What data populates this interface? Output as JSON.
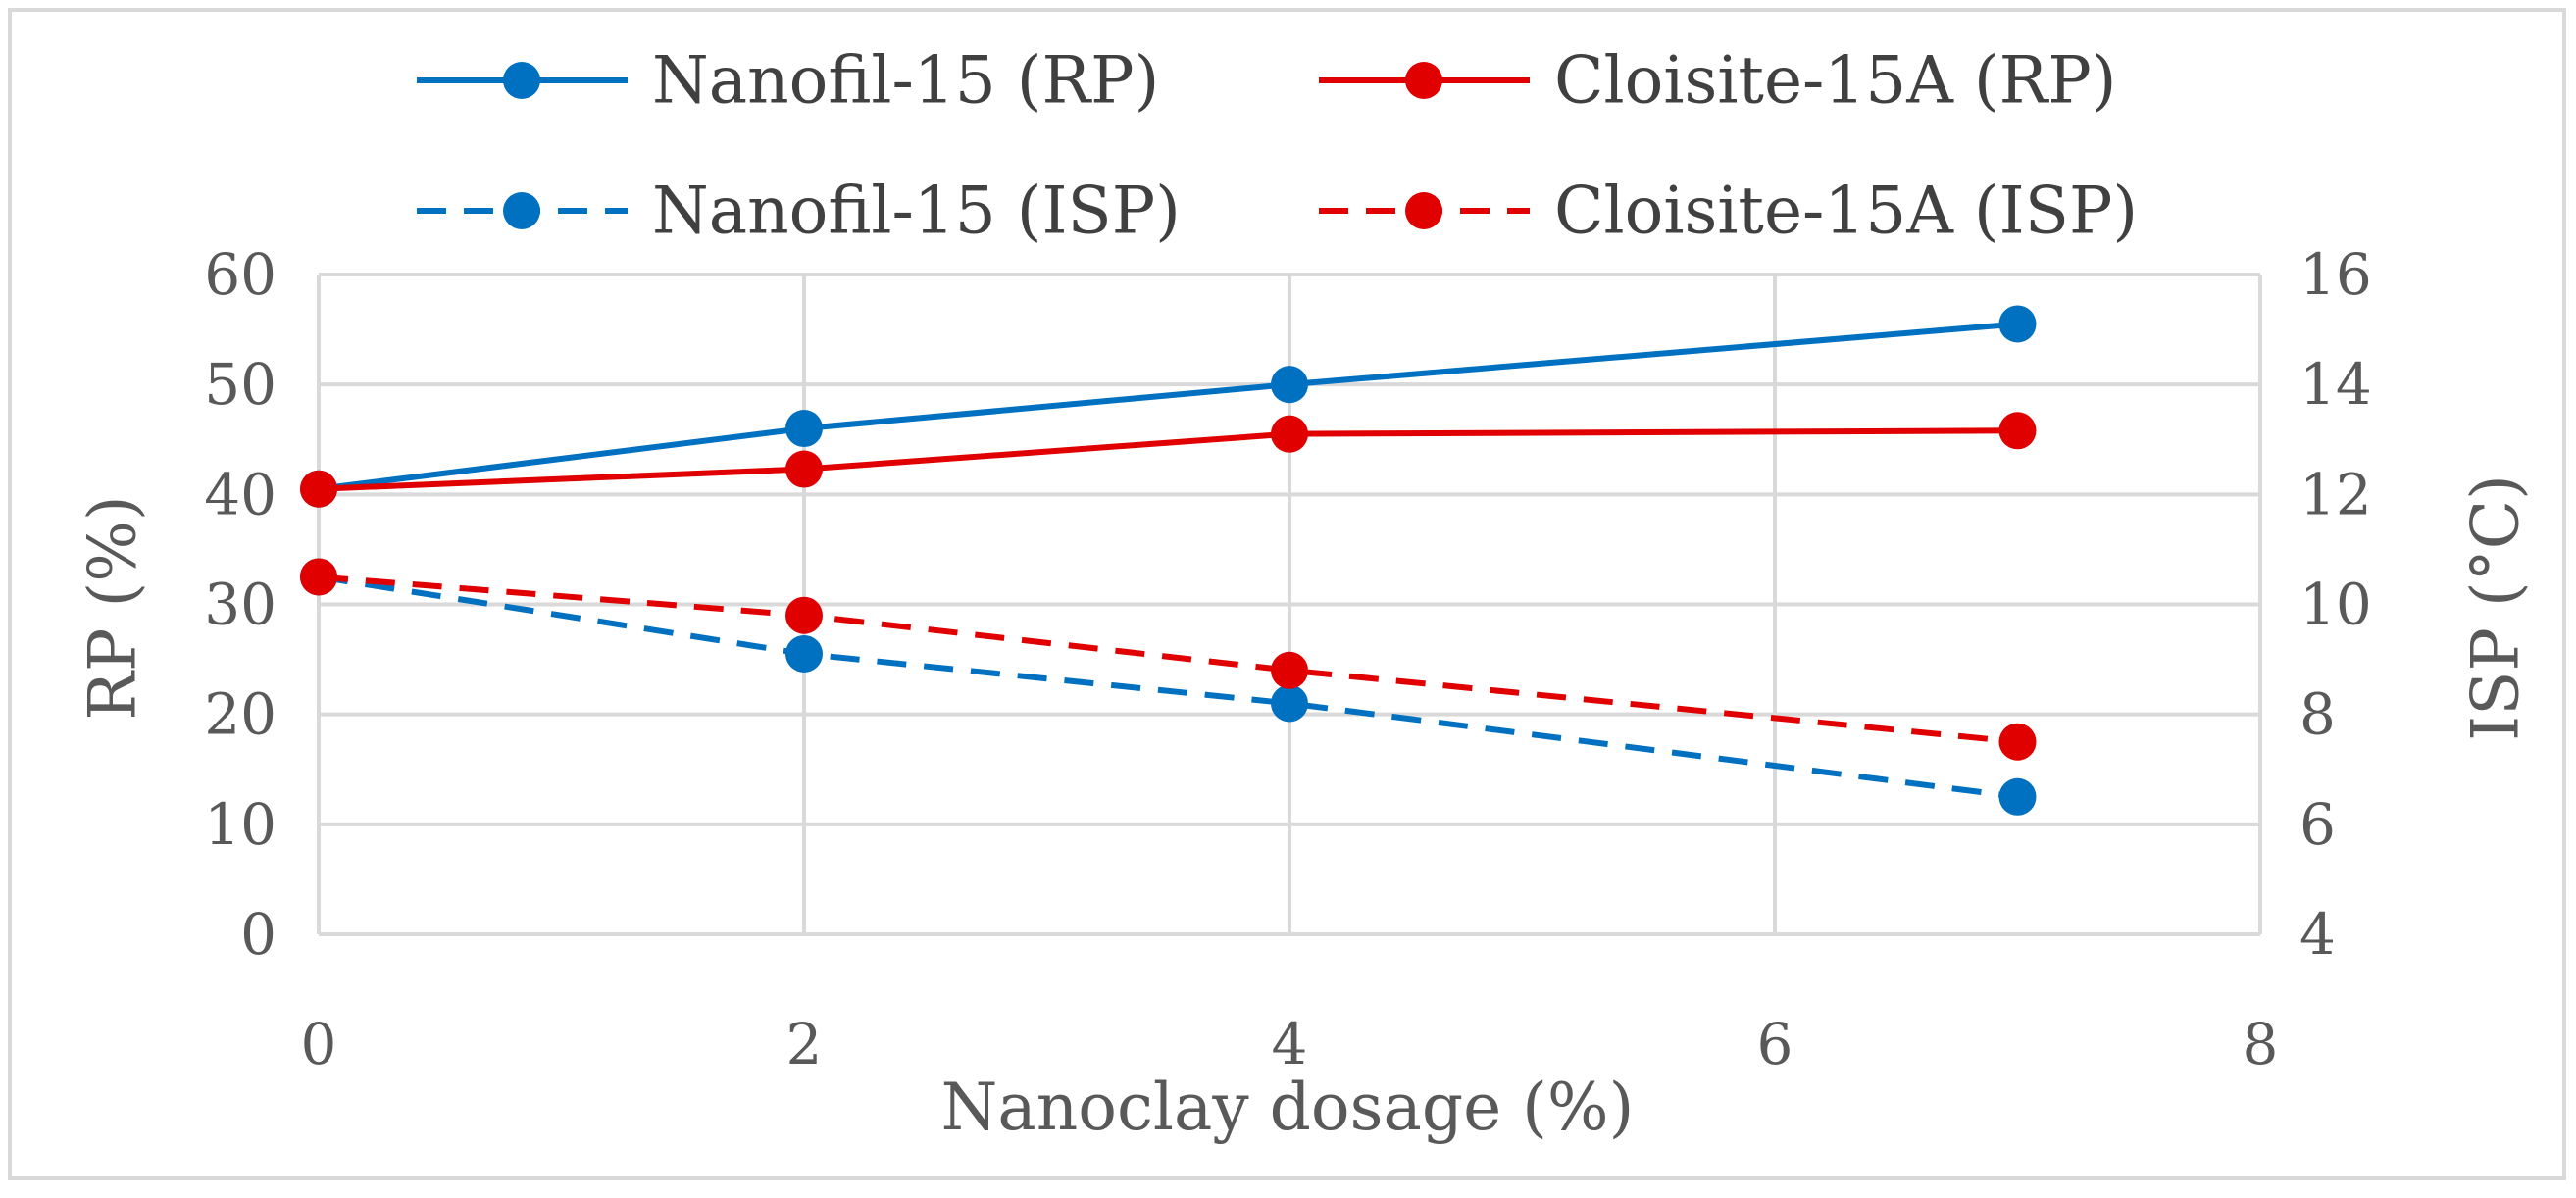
{
  "chart_data": {
    "type": "line",
    "xlabel": "Nanoclay dosage (%)",
    "ylabel": "RP (%)",
    "y2label": "ISP (°C)",
    "xlim": [
      0,
      8
    ],
    "ylim": [
      0,
      60
    ],
    "y2lim": [
      4,
      16
    ],
    "x_ticks": [
      "0",
      "2",
      "4",
      "6",
      "8"
    ],
    "y_ticks": [
      "0",
      "10",
      "20",
      "30",
      "40",
      "50",
      "60"
    ],
    "y2_ticks": [
      "4",
      "6",
      "8",
      "10",
      "12",
      "14",
      "16"
    ],
    "grid": true,
    "legend_position": "top",
    "series": [
      {
        "name": "Nanofil-15 (RP)",
        "axis": "left",
        "style": "solid",
        "color": "#0070C0",
        "x": [
          0,
          2,
          4,
          7
        ],
        "values": [
          40.5,
          46,
          50,
          55.5
        ]
      },
      {
        "name": "Cloisite-15A (RP)",
        "axis": "left",
        "style": "solid",
        "color": "#E00000",
        "x": [
          0,
          2,
          4,
          7
        ],
        "values": [
          40.5,
          42.3,
          45.5,
          45.8
        ]
      },
      {
        "name": "Nanofil-15 (ISP)",
        "axis": "right",
        "style": "dashed",
        "color": "#0070C0",
        "x": [
          0,
          2,
          4,
          7
        ],
        "values": [
          10.5,
          9.1,
          8.2,
          6.5
        ]
      },
      {
        "name": "Cloisite-15A (ISP)",
        "axis": "right",
        "style": "dashed",
        "color": "#E00000",
        "x": [
          0,
          2,
          4,
          7
        ],
        "values": [
          10.5,
          9.8,
          8.8,
          7.5
        ]
      }
    ]
  }
}
